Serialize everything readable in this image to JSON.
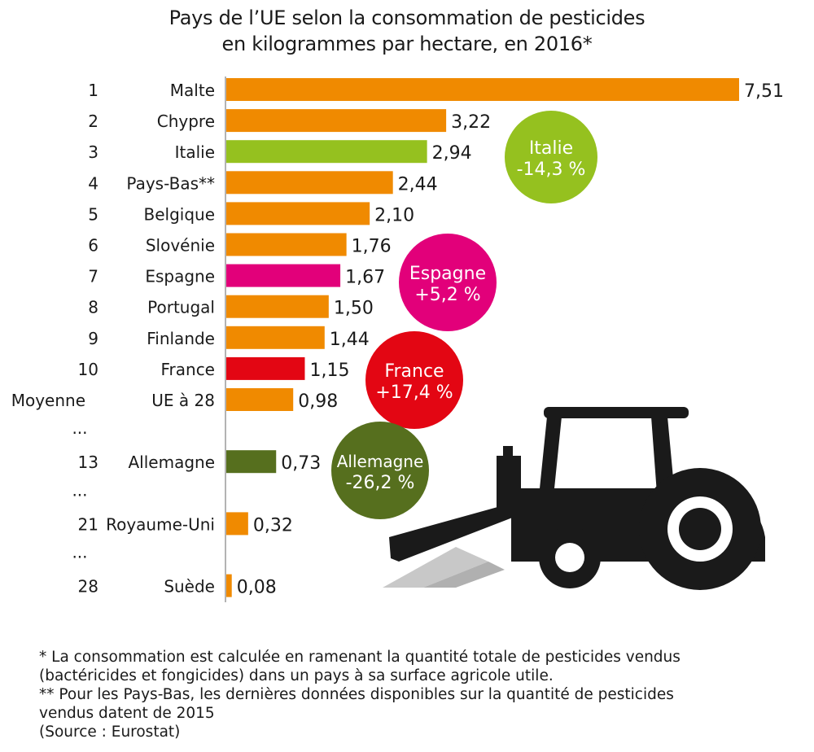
{
  "chart_data": {
    "type": "bar",
    "orientation": "horizontal",
    "title": "Pays de l’UE selon la consommation de pesticides en kilogrammes par hectare, en 2016*",
    "title_lines": [
      "Pays de l’UE selon la consommation de pesticides",
      "en kilogrammes par hectare, en 2016*"
    ],
    "xlim": [
      0,
      7.51
    ],
    "rows": [
      {
        "rank": "1",
        "country": "Malte",
        "value": 7.51,
        "label": "7,51",
        "color": "#f08a00"
      },
      {
        "rank": "2",
        "country": "Chypre",
        "value": 3.22,
        "label": "3,22",
        "color": "#f08a00"
      },
      {
        "rank": "3",
        "country": "Italie",
        "value": 2.94,
        "label": "2,94",
        "color": "#95c11f"
      },
      {
        "rank": "4",
        "country": "Pays-Bas**",
        "value": 2.44,
        "label": "2,44",
        "color": "#f08a00"
      },
      {
        "rank": "5",
        "country": "Belgique",
        "value": 2.1,
        "label": "2,10",
        "color": "#f08a00"
      },
      {
        "rank": "6",
        "country": "Slovénie",
        "value": 1.76,
        "label": "1,76",
        "color": "#f08a00"
      },
      {
        "rank": "7",
        "country": "Espagne",
        "value": 1.67,
        "label": "1,67",
        "color": "#e2007a"
      },
      {
        "rank": "8",
        "country": "Portugal",
        "value": 1.5,
        "label": "1,50",
        "color": "#f08a00"
      },
      {
        "rank": "9",
        "country": "Finlande",
        "value": 1.44,
        "label": "1,44",
        "color": "#f08a00"
      },
      {
        "rank": "10",
        "country": "France",
        "value": 1.15,
        "label": "1,15",
        "color": "#e30613"
      },
      {
        "rank": "Moyenne",
        "country": "UE à 28",
        "value": 0.98,
        "label": "0,98",
        "color": "#f08a00"
      },
      {
        "rank": "...",
        "country": "",
        "value": null,
        "label": "",
        "color": ""
      },
      {
        "rank": "13",
        "country": "Allemagne",
        "value": 0.73,
        "label": "0,73",
        "color": "#566f1e"
      },
      {
        "rank": "...",
        "country": "",
        "value": null,
        "label": "",
        "color": ""
      },
      {
        "rank": "21",
        "country": "Royaume-Uni",
        "value": 0.32,
        "label": "0,32",
        "color": "#f08a00"
      },
      {
        "rank": "...",
        "country": "",
        "value": null,
        "label": "",
        "color": ""
      },
      {
        "rank": "28",
        "country": "Suède",
        "value": 0.08,
        "label": "0,08",
        "color": "#f08a00"
      }
    ],
    "annotations": [
      {
        "name": "Italie",
        "change": "-14,3 %",
        "color": "#95c11f"
      },
      {
        "name": "Espagne",
        "change": "+5,2 %",
        "color": "#e2007a"
      },
      {
        "name": "France",
        "change": "+17,4 %",
        "color": "#e30613"
      },
      {
        "name": "Allemagne",
        "change": "-26,2 %",
        "color": "#566f1e"
      }
    ]
  },
  "footnotes": [
    "* La consommation est calculée en ramenant la quantité totale de pesticides vendus",
    "(bactéricides et fongicides) dans un pays à sa surface agricole utile.",
    "** Pour les Pays-Bas, les dernières données disponibles sur la quantité de pesticides",
    "vendus datent de 2015",
    "(Source : Eurostat)"
  ]
}
